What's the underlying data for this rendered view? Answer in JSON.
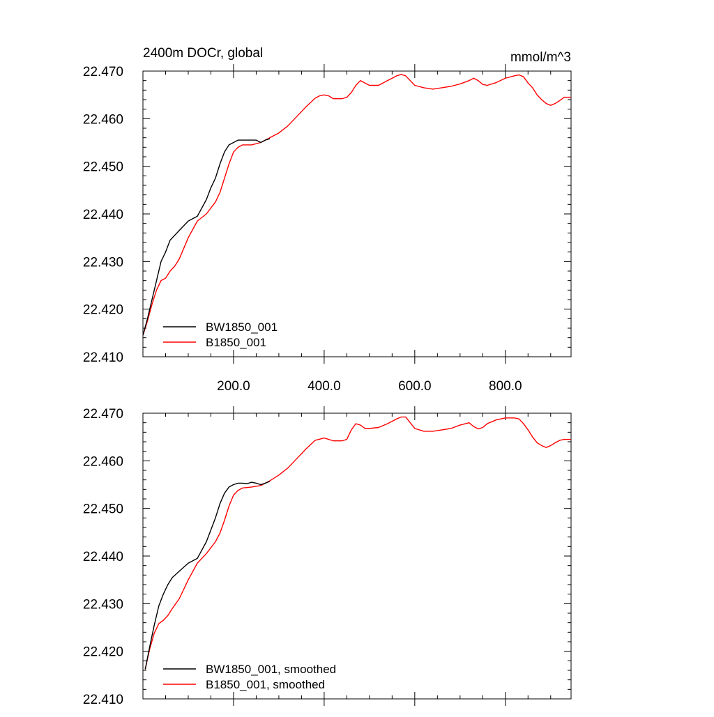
{
  "chart_data": [
    {
      "type": "line",
      "title": "2400m DOCr, global",
      "units": "mmol/m^3",
      "xlabel": "",
      "ylabel": "",
      "xlim": [
        0,
        945
      ],
      "ylim": [
        22.41,
        22.47
      ],
      "x_ticks": [
        200,
        400,
        600,
        800
      ],
      "x_tick_labels": [
        "200.0",
        "400.0",
        "600.0",
        "800.0"
      ],
      "y_ticks": [
        22.41,
        22.42,
        22.43,
        22.44,
        22.45,
        22.46,
        22.47
      ],
      "y_tick_labels": [
        "22.410",
        "22.420",
        "22.430",
        "22.440",
        "22.450",
        "22.460",
        "22.470"
      ],
      "grid": false,
      "legend_position": "bottom-left",
      "series": [
        {
          "name": "BW1850_001",
          "color": "#000000",
          "x": [
            0,
            10,
            20,
            30,
            40,
            50,
            60,
            80,
            100,
            120,
            140,
            150,
            160,
            170,
            180,
            190,
            200,
            210,
            220,
            230,
            240,
            250,
            260,
            270,
            280
          ],
          "y": [
            22.4145,
            22.418,
            22.422,
            22.426,
            22.43,
            22.432,
            22.4345,
            22.4365,
            22.4385,
            22.4395,
            22.443,
            22.4455,
            22.4475,
            22.4505,
            22.453,
            22.4545,
            22.455,
            22.4555,
            22.4555,
            22.4555,
            22.4555,
            22.4555,
            22.455,
            22.4555,
            22.4558
          ]
        },
        {
          "name": "B1850_001",
          "color": "#ff0000",
          "x": [
            0,
            10,
            20,
            30,
            40,
            50,
            60,
            70,
            80,
            100,
            120,
            140,
            160,
            170,
            180,
            190,
            200,
            210,
            220,
            240,
            260,
            270,
            280,
            300,
            320,
            340,
            360,
            380,
            390,
            400,
            410,
            420,
            440,
            450,
            460,
            470,
            480,
            490,
            500,
            520,
            540,
            560,
            570,
            580,
            590,
            600,
            620,
            640,
            660,
            680,
            700,
            720,
            730,
            740,
            750,
            760,
            780,
            800,
            820,
            830,
            840,
            850,
            860,
            870,
            880,
            890,
            900,
            910,
            920,
            930,
            945
          ],
          "y": [
            22.4145,
            22.4175,
            22.421,
            22.424,
            22.426,
            22.4265,
            22.428,
            22.429,
            22.4305,
            22.435,
            22.4385,
            22.44,
            22.4425,
            22.4445,
            22.4475,
            22.4505,
            22.453,
            22.454,
            22.4545,
            22.4545,
            22.455,
            22.4555,
            22.456,
            22.457,
            22.4585,
            22.4605,
            22.4625,
            22.4643,
            22.4648,
            22.465,
            22.4648,
            22.4642,
            22.4642,
            22.4645,
            22.4655,
            22.467,
            22.468,
            22.4675,
            22.467,
            22.467,
            22.468,
            22.469,
            22.4693,
            22.469,
            22.468,
            22.467,
            22.4665,
            22.4662,
            22.4665,
            22.4668,
            22.4673,
            22.468,
            22.4685,
            22.468,
            22.4672,
            22.467,
            22.4676,
            22.4685,
            22.469,
            22.4692,
            22.4688,
            22.4675,
            22.4665,
            22.465,
            22.464,
            22.4632,
            22.4628,
            22.4632,
            22.4638,
            22.4645,
            22.4645
          ]
        }
      ]
    },
    {
      "type": "line",
      "title": "",
      "xlabel": "",
      "ylabel": "",
      "xlim": [
        0,
        945
      ],
      "ylim": [
        22.41,
        22.47
      ],
      "x_ticks": [
        200,
        400,
        600,
        800
      ],
      "y_ticks": [
        22.41,
        22.42,
        22.43,
        22.44,
        22.45,
        22.46,
        22.47
      ],
      "y_tick_labels": [
        "22.410",
        "22.420",
        "22.430",
        "22.440",
        "22.450",
        "22.460",
        "22.470"
      ],
      "grid": false,
      "legend_position": "bottom-left",
      "series": [
        {
          "name": "BW1850_001, smoothed",
          "color": "#000000",
          "x": [
            5,
            15,
            25,
            35,
            45,
            55,
            65,
            80,
            100,
            120,
            140,
            150,
            160,
            170,
            180,
            190,
            200,
            210,
            220,
            230,
            240,
            250,
            260,
            270,
            280
          ],
          "y": [
            22.4162,
            22.421,
            22.4255,
            22.4295,
            22.432,
            22.434,
            22.4355,
            22.4368,
            22.4385,
            22.4395,
            22.443,
            22.4455,
            22.448,
            22.451,
            22.4532,
            22.4545,
            22.455,
            22.4553,
            22.4553,
            22.4552,
            22.4555,
            22.4553,
            22.455,
            22.4553,
            22.4557
          ]
        },
        {
          "name": "B1850_001, smoothed",
          "color": "#ff0000",
          "x": [
            5,
            15,
            25,
            35,
            45,
            55,
            65,
            80,
            100,
            120,
            140,
            160,
            170,
            180,
            190,
            200,
            210,
            220,
            240,
            260,
            270,
            280,
            300,
            320,
            340,
            360,
            380,
            400,
            420,
            440,
            450,
            460,
            470,
            480,
            490,
            500,
            520,
            540,
            560,
            570,
            580,
            590,
            600,
            620,
            640,
            660,
            680,
            700,
            720,
            730,
            740,
            750,
            760,
            780,
            800,
            820,
            830,
            840,
            850,
            860,
            870,
            880,
            890,
            900,
            910,
            920,
            930,
            945
          ],
          "y": [
            22.4162,
            22.4205,
            22.4238,
            22.4258,
            22.4265,
            22.4275,
            22.429,
            22.431,
            22.435,
            22.4385,
            22.4405,
            22.443,
            22.4448,
            22.4475,
            22.4505,
            22.4528,
            22.4538,
            22.4543,
            22.4545,
            22.4548,
            22.4553,
            22.4558,
            22.457,
            22.4585,
            22.4605,
            22.4625,
            22.4643,
            22.4648,
            22.4642,
            22.4642,
            22.4645,
            22.4665,
            22.4678,
            22.4675,
            22.4668,
            22.4668,
            22.467,
            22.4678,
            22.4688,
            22.4692,
            22.4692,
            22.468,
            22.4668,
            22.4662,
            22.4662,
            22.4665,
            22.4668,
            22.4675,
            22.468,
            22.4672,
            22.4667,
            22.467,
            22.4678,
            22.4686,
            22.469,
            22.469,
            22.4688,
            22.4678,
            22.4665,
            22.465,
            22.4638,
            22.4632,
            22.4628,
            22.4632,
            22.4638,
            22.4643,
            22.4645,
            22.4645
          ]
        }
      ]
    }
  ]
}
